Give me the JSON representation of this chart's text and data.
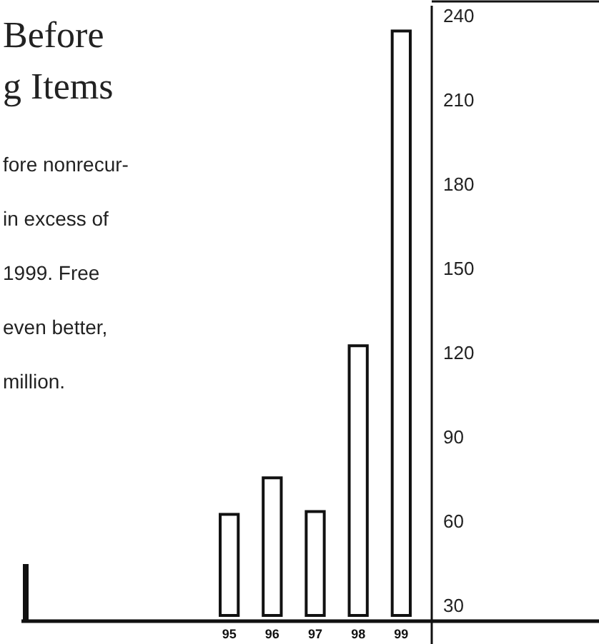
{
  "chart_data": {
    "type": "bar",
    "title": "Before\ng Items",
    "annotations": [
      "fore nonrecur-",
      "in excess of",
      "1999. Free",
      "even better,",
      "million."
    ],
    "categories": [
      "95",
      "96",
      "97",
      "98",
      "99"
    ],
    "values": [
      63,
      76,
      64,
      123,
      235
    ],
    "color": "#ffffff",
    "ylim": [
      25,
      244
    ],
    "yticks": [
      30,
      60,
      90,
      120,
      150,
      180,
      210,
      240
    ],
    "grid": false
  }
}
